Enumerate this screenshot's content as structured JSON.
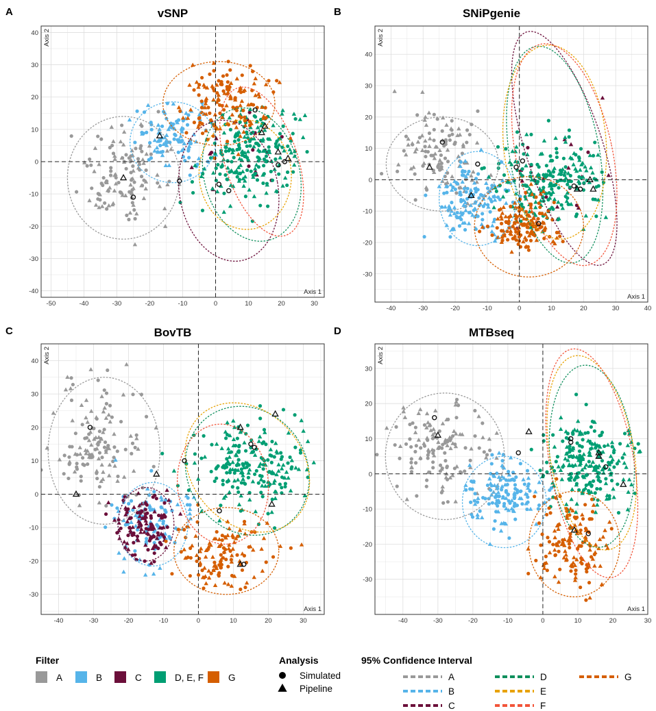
{
  "colors": {
    "A": "#999999",
    "B": "#56B4E9",
    "C": "#6B0F3A",
    "DEF": "#009E73",
    "G": "#D55E00",
    "ci_D": "#0E8F5C",
    "ci_E": "#E8A202",
    "ci_F": "#F2553A",
    "grid": "#dddddd"
  },
  "chart_data": [
    {
      "type": "scatter",
      "panel_letter": "A",
      "title": "vSNP",
      "xlabel": "Axis 1",
      "ylabel": "Axis 2",
      "xlim": [
        -53,
        33
      ],
      "ylim": [
        -42,
        42
      ],
      "xticks": [
        -50,
        -40,
        -30,
        -20,
        -10,
        0,
        10,
        20,
        30
      ],
      "yticks": [
        -40,
        -30,
        -20,
        -10,
        0,
        10,
        20,
        30,
        40
      ],
      "clusters": [
        {
          "group": "A",
          "cx": -28,
          "cy": -5,
          "sx": 6.5,
          "sy": 8,
          "n": 130
        },
        {
          "group": "B",
          "cx": -13,
          "cy": 8,
          "sx": 5.5,
          "sy": 5,
          "n": 110
        },
        {
          "group": "C",
          "cx": 6,
          "cy": 0,
          "sx": 7,
          "sy": 9,
          "n": 14
        },
        {
          "group": "DEF",
          "cx": 10,
          "cy": 2,
          "sx": 7,
          "sy": 7,
          "n": 230
        },
        {
          "group": "G",
          "cx": 3,
          "cy": 18,
          "sx": 7,
          "sy": 6,
          "n": 150
        }
      ],
      "ellipses": [
        {
          "group": "A",
          "cx": -28,
          "cy": -5,
          "rx": 17,
          "ry": 19,
          "angle": 0
        },
        {
          "group": "B",
          "cx": -13,
          "cy": 6,
          "rx": 13,
          "ry": 12.5,
          "angle": 0
        },
        {
          "group": "C",
          "cx": 4,
          "cy": -9,
          "rx": 15,
          "ry": 22,
          "angle": 10
        },
        {
          "group": "D",
          "cx": 11,
          "cy": -4,
          "rx": 14.5,
          "ry": 21,
          "angle": 15
        },
        {
          "group": "E",
          "cx": 9,
          "cy": -4,
          "rx": 14,
          "ry": 17,
          "angle": 5
        },
        {
          "group": "F",
          "cx": 14,
          "cy": 0,
          "rx": 11,
          "ry": 24,
          "angle": 18
        },
        {
          "group": "G",
          "cx": 1,
          "cy": 18,
          "rx": 17,
          "ry": 13,
          "angle": 0
        }
      ],
      "simulated": [
        [
          -25,
          -11
        ],
        [
          -11,
          -6
        ],
        [
          12,
          16
        ],
        [
          1,
          -7
        ],
        [
          4,
          -9
        ],
        [
          19,
          -1
        ],
        [
          21,
          0
        ]
      ],
      "pipeline": [
        [
          -28,
          -5
        ],
        [
          -17,
          8
        ],
        [
          15,
          11
        ],
        [
          19,
          3
        ],
        [
          22,
          1
        ],
        [
          14,
          9
        ]
      ]
    },
    {
      "type": "scatter",
      "panel_letter": "B",
      "title": "SNiPgenie",
      "xlabel": "Axis 1",
      "ylabel": "Axis 2",
      "xlim": [
        -45,
        40
      ],
      "ylim": [
        -39,
        49
      ],
      "xticks": [
        -40,
        -30,
        -20,
        -10,
        0,
        10,
        20,
        30,
        40
      ],
      "yticks": [
        -30,
        -20,
        -10,
        0,
        10,
        20,
        30,
        40
      ],
      "clusters": [
        {
          "group": "A",
          "cx": -25,
          "cy": 8,
          "sx": 6,
          "sy": 7,
          "n": 120
        },
        {
          "group": "B",
          "cx": -15,
          "cy": -7,
          "sx": 6,
          "sy": 6,
          "n": 150
        },
        {
          "group": "C",
          "cx": 14,
          "cy": 5,
          "sx": 8,
          "sy": 11,
          "n": 20
        },
        {
          "group": "DEF",
          "cx": 10,
          "cy": 0,
          "sx": 8,
          "sy": 7,
          "n": 230
        },
        {
          "group": "G",
          "cx": 1,
          "cy": -15,
          "sx": 5.5,
          "sy": 5,
          "n": 150
        }
      ],
      "ellipses": [
        {
          "group": "A",
          "cx": -24,
          "cy": 5,
          "rx": 17.5,
          "ry": 15,
          "angle": 0
        },
        {
          "group": "B",
          "cx": -13,
          "cy": -6,
          "rx": 12,
          "ry": 15,
          "angle": 0
        },
        {
          "group": "C",
          "cx": 14,
          "cy": 10,
          "rx": 12,
          "ry": 39,
          "angle": 18
        },
        {
          "group": "D",
          "cx": 11,
          "cy": 8,
          "rx": 14,
          "ry": 35,
          "angle": 10
        },
        {
          "group": "E",
          "cx": 11,
          "cy": 12,
          "rx": 16,
          "ry": 31,
          "angle": 5
        },
        {
          "group": "F",
          "cx": 14,
          "cy": 8,
          "rx": 15,
          "ry": 36,
          "angle": 12
        },
        {
          "group": "G",
          "cx": 3,
          "cy": -15,
          "rx": 17,
          "ry": 16,
          "angle": 0
        }
      ],
      "simulated": [
        [
          -24,
          12
        ],
        [
          -13,
          5
        ],
        [
          -1,
          4
        ],
        [
          1,
          6
        ],
        [
          6,
          -14
        ],
        [
          17,
          -2
        ],
        [
          19,
          -3
        ]
      ],
      "pipeline": [
        [
          -28,
          4
        ],
        [
          -15,
          -5
        ],
        [
          22,
          0
        ],
        [
          23,
          -3
        ],
        [
          18,
          -3
        ]
      ]
    },
    {
      "type": "scatter",
      "panel_letter": "C",
      "title": "BovTB",
      "xlabel": "Axis 1",
      "ylabel": "Axis 2",
      "xlim": [
        -45,
        36
      ],
      "ylim": [
        -36,
        45
      ],
      "xticks": [
        -40,
        -30,
        -20,
        -10,
        0,
        10,
        20,
        30
      ],
      "yticks": [
        -30,
        -20,
        -10,
        0,
        10,
        20,
        30,
        40
      ],
      "clusters": [
        {
          "group": "A",
          "cx": -29,
          "cy": 15,
          "sx": 7,
          "sy": 8,
          "n": 140
        },
        {
          "group": "B",
          "cx": -13,
          "cy": -8,
          "sx": 5,
          "sy": 6,
          "n": 110
        },
        {
          "group": "C",
          "cx": -15,
          "cy": -10,
          "sx": 4,
          "sy": 4.5,
          "n": 130
        },
        {
          "group": "DEF",
          "cx": 15,
          "cy": 9,
          "sx": 7.5,
          "sy": 7,
          "n": 220
        },
        {
          "group": "G",
          "cx": 6,
          "cy": -18,
          "sx": 6.5,
          "sy": 5,
          "n": 130
        }
      ],
      "ellipses": [
        {
          "group": "A",
          "cx": -27,
          "cy": 13,
          "rx": 16,
          "ry": 22,
          "angle": 0
        },
        {
          "group": "B",
          "cx": -13,
          "cy": -9,
          "rx": 10,
          "ry": 12.5,
          "angle": 0
        },
        {
          "group": "C",
          "cx": -15,
          "cy": -9,
          "rx": 8,
          "ry": 11,
          "angle": 0
        },
        {
          "group": "D",
          "cx": 14,
          "cy": 7,
          "rx": 17,
          "ry": 20,
          "angle": 35
        },
        {
          "group": "E",
          "cx": 14,
          "cy": 8,
          "rx": 16,
          "ry": 21,
          "angle": 40
        },
        {
          "group": "F",
          "cx": 7,
          "cy": 3,
          "rx": 13,
          "ry": 18,
          "angle": 5
        },
        {
          "group": "G",
          "cx": 8,
          "cy": -17,
          "rx": 15,
          "ry": 13,
          "angle": 0
        }
      ],
      "simulated": [
        [
          -31,
          20
        ],
        [
          -4,
          10
        ],
        [
          15,
          15
        ],
        [
          16,
          14
        ],
        [
          6,
          -5
        ],
        [
          13,
          -21
        ]
      ],
      "pipeline": [
        [
          -35,
          0
        ],
        [
          -12,
          6
        ],
        [
          12,
          20
        ],
        [
          22,
          24
        ],
        [
          21,
          -3
        ],
        [
          12,
          -21
        ]
      ]
    },
    {
      "type": "scatter",
      "panel_letter": "D",
      "title": "MTBseq",
      "xlabel": "Axis 1",
      "ylabel": "Axis 2",
      "xlim": [
        -48,
        30
      ],
      "ylim": [
        -40,
        37
      ],
      "xticks": [
        -40,
        -30,
        -20,
        -10,
        0,
        10,
        20,
        30
      ],
      "yticks": [
        -30,
        -20,
        -10,
        0,
        10,
        20,
        30
      ],
      "clusters": [
        {
          "group": "A",
          "cx": -29,
          "cy": 7,
          "sx": 7,
          "sy": 7,
          "n": 140
        },
        {
          "group": "B",
          "cx": -11,
          "cy": -6,
          "sx": 5.5,
          "sy": 5,
          "n": 150
        },
        {
          "group": "DEF",
          "cx": 13,
          "cy": 3,
          "sx": 6,
          "sy": 6.5,
          "n": 230
        },
        {
          "group": "G",
          "cx": 9,
          "cy": -20,
          "sx": 5,
          "sy": 6,
          "n": 150
        }
      ],
      "ellipses": [
        {
          "group": "A",
          "cx": -28,
          "cy": 5,
          "rx": 17,
          "ry": 18,
          "angle": 0
        },
        {
          "group": "B",
          "cx": -11,
          "cy": -8,
          "rx": 12,
          "ry": 13,
          "angle": 0
        },
        {
          "group": "D",
          "cx": 14,
          "cy": 5,
          "rx": 12,
          "ry": 26,
          "angle": 5
        },
        {
          "group": "E",
          "cx": 14,
          "cy": 6,
          "rx": 12,
          "ry": 28,
          "angle": 10
        },
        {
          "group": "F",
          "cx": 14,
          "cy": 3,
          "rx": 12,
          "ry": 33,
          "angle": 10
        },
        {
          "group": "G",
          "cx": 9,
          "cy": -20,
          "rx": 13,
          "ry": 15,
          "angle": 0
        }
      ],
      "simulated": [
        [
          -31,
          16
        ],
        [
          -7,
          6
        ],
        [
          8,
          9
        ],
        [
          8,
          10
        ],
        [
          18,
          2
        ],
        [
          13,
          -17
        ]
      ],
      "pipeline": [
        [
          -30,
          11
        ],
        [
          -4,
          12
        ],
        [
          16,
          6
        ],
        [
          16,
          5
        ],
        [
          23,
          -3
        ],
        [
          9,
          -16
        ]
      ]
    }
  ],
  "legend": {
    "filter": {
      "title": "Filter",
      "items": [
        {
          "key": "A",
          "label": "A"
        },
        {
          "key": "B",
          "label": "B"
        },
        {
          "key": "C",
          "label": "C"
        },
        {
          "key": "DEF",
          "label": "D, E, F"
        },
        {
          "key": "G",
          "label": "G"
        }
      ]
    },
    "analysis": {
      "title": "Analysis",
      "items": [
        {
          "shape": "circle",
          "label": "Simulated"
        },
        {
          "shape": "triangle",
          "label": "Pipeline"
        }
      ]
    },
    "ci": {
      "title": "95% Confidence Interval",
      "items": [
        {
          "key": "A",
          "label": "A"
        },
        {
          "key": "B",
          "label": "B"
        },
        {
          "key": "C",
          "label": "C"
        },
        {
          "key": "D",
          "label": "D"
        },
        {
          "key": "E",
          "label": "E"
        },
        {
          "key": "F",
          "label": "F"
        },
        {
          "key": "G",
          "label": "G"
        }
      ]
    }
  }
}
